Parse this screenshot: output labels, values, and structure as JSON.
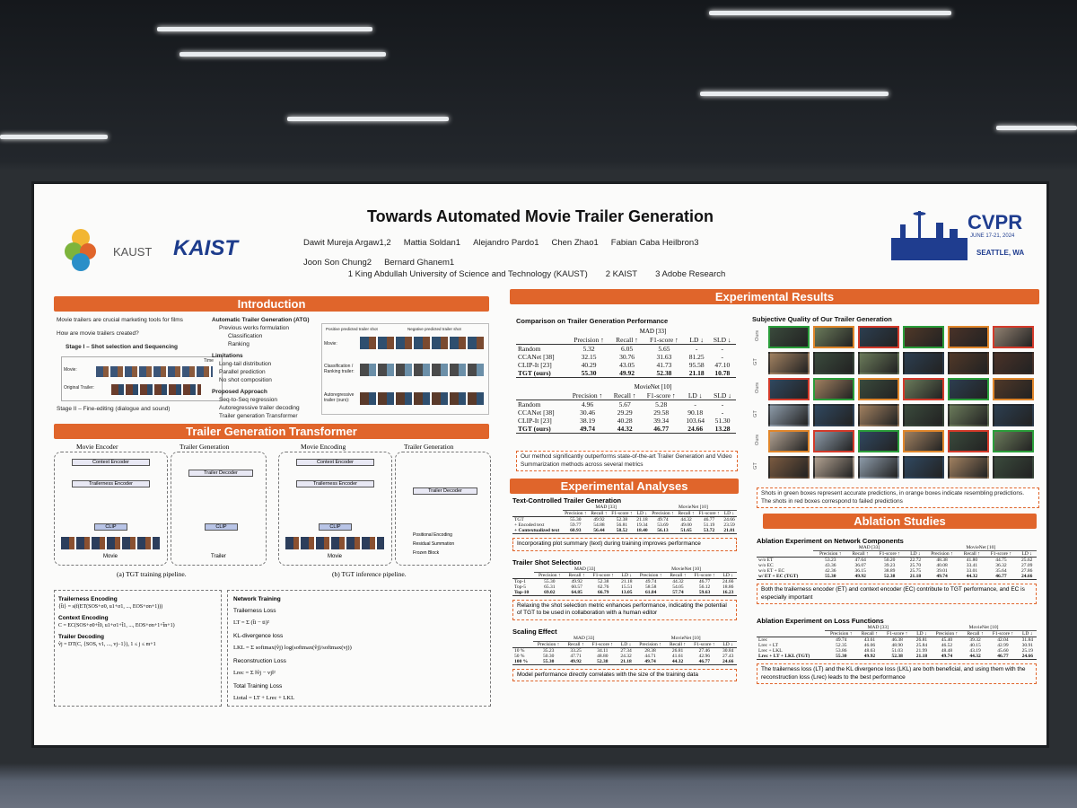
{
  "header": {
    "title": "Towards Automated Movie Trailer Generation",
    "authors": [
      "Dawit Mureja Argaw1,2",
      "Mattia Soldan1",
      "Alejandro Pardo1",
      "Chen Zhao1",
      "Fabian Caba Heilbron3",
      "Joon Son Chung2",
      "Bernard Ghanem1"
    ],
    "affiliations": [
      "1 King Abdullah University of Science and Technology (KAUST)",
      "2 KAIST",
      "3 Adobe Research"
    ],
    "logos": [
      "KAUST",
      "KAIST"
    ],
    "conference": {
      "name": "CVPR",
      "dates": "JUNE 17-21, 2024",
      "location": "SEATTLE, WA"
    }
  },
  "introduction": {
    "heading": "Introduction",
    "points": [
      "Movie trailers are crucial marketing tools for films",
      "How are movie trailers created?",
      "Stage I – Shot selection and Sequencing"
    ],
    "stage2": "Stage II – Fine-editing (dialogue and sound)",
    "figure_labels": [
      "Movie:",
      "Original Trailer:",
      "Time"
    ],
    "atg": [
      {
        "title": "Automatic Trailer Generation (ATG)",
        "items": [
          "Previous works formulation",
          "Classification",
          "Ranking"
        ]
      },
      {
        "title": "Limitations",
        "items": [
          "Long-tail distribution",
          "Parallel prediction",
          "No shot composition"
        ]
      },
      {
        "title": "Proposed Approach",
        "items": [
          "Seq-to-Seq regression",
          "Autoregressive trailer decoding",
          "Trailer generation Transformer"
        ]
      }
    ],
    "diagram_labels": [
      "Positive predicted trailer shot",
      "Negative predicted trailer shot",
      "Movie:",
      "Classification / Ranking trailer:",
      "Autoregressive trailer (ours):"
    ]
  },
  "transformer": {
    "heading": "Trailer Generation Transformer",
    "panels": [
      {
        "titles": [
          "Movie Encoder",
          "Trailer Generation"
        ],
        "caption": "(a) TGT training pipeline.",
        "inputs": [
          "Movie",
          "Trailer"
        ]
      },
      {
        "titles": [
          "Movie Encoding",
          "Trailer Generation"
        ],
        "caption": "(b) TGT inference pipeline.",
        "inputs": [
          "Movie"
        ]
      }
    ],
    "blocks": [
      "Context Encoder",
      "Trailerness Encoder",
      "Trailer Decoder",
      "CLIP"
    ],
    "legend": [
      "Positional Encoding",
      "Residual Summation",
      "Frozen Block"
    ],
    "equations": [
      {
        "title": "Trailerness Encoding",
        "formula": "{t̂i} = s(f(ET(SOS+σ0, u1+σ1, ..., EOS+σn+1)))"
      },
      {
        "title": "Context Encoding",
        "formula": "C = EC(SOS+σ0+t̂0, u1+σ1+t̂1, ..., EOS+σn+1+t̂n+1)"
      },
      {
        "title": "Trailer Decoding",
        "formula": "v̂j = DT(C, {SOS, v1, ..., vj−1}),  1 ≤ j ≤ m+1"
      }
    ],
    "training": {
      "title": "Network Training",
      "items": [
        {
          "title": "Trailerness Loss",
          "formula": "LT = Σ (t̂i − ti)²"
        },
        {
          "title": "KL-divergence loss",
          "formula": "LKL = Σ softmax(v̂j) log(softmax(v̂j)/softmax(vj))"
        },
        {
          "title": "Reconstruction Loss",
          "formula": "Lrec = Σ ‖v̂j − vj‖²"
        },
        {
          "title": "Total Training Loss",
          "formula": "Ltotal = LT + Lrec + LKL"
        }
      ]
    }
  },
  "results": {
    "heading": "Experimental Results",
    "comparison": {
      "title": "Comparison on Trailer Generation Performance",
      "blocks": [
        {
          "group": "MAD [33]",
          "headers": [
            "Precision ↑",
            "Recall ↑",
            "F1-score ↑",
            "LD ↓",
            "SLD ↓"
          ],
          "rows": [
            [
              "Random",
              "5.32",
              "6.05",
              "5.65",
              "-",
              "-"
            ],
            [
              "CCANet [38]",
              "32.15",
              "30.76",
              "31.63",
              "81.25",
              "-"
            ],
            [
              "CLIP-It [23]",
              "40.29",
              "43.05",
              "41.73",
              "95.58",
              "47.10"
            ],
            [
              "TGT (ours)",
              "55.30",
              "49.92",
              "52.38",
              "21.18",
              "10.78"
            ]
          ]
        },
        {
          "group": "MovieNet [10]",
          "headers": [
            "Precision ↑",
            "Recall ↑",
            "F1-score ↑",
            "LD ↓",
            "SLD ↓"
          ],
          "rows": [
            [
              "Random",
              "4.96",
              "5.67",
              "5.28",
              "-",
              "-"
            ],
            [
              "CCANet [38]",
              "30.46",
              "29.29",
              "29.58",
              "90.18",
              "-"
            ],
            [
              "CLIP-It [23]",
              "38.19",
              "40.28",
              "39.34",
              "103.64",
              "51.30"
            ],
            [
              "TGT (ours)",
              "49.74",
              "44.32",
              "46.77",
              "24.66",
              "13.28"
            ]
          ]
        }
      ],
      "note": "Our method significantly outperforms state-of-the-art Trailer Generation and Video Summarization methods across several metrics"
    },
    "subjective": {
      "title": "Subjective Quality of Our Trailer Generation",
      "rows": [
        "Ours",
        "GT",
        "Ours",
        "GT",
        "Ours",
        "GT"
      ],
      "note": "Shots in green boxes represent accurate predictions, in orange boxes indicate resembling predictions. The shots in red boxes correspond to failed predictions"
    }
  },
  "analyses": {
    "heading": "Experimental Analyses",
    "tables": [
      {
        "title": "Text-Controlled Trailer Generation",
        "groups": [
          "MAD [33]",
          "MovieNet [10]"
        ],
        "headers": [
          "Precision ↑",
          "Recall ↑",
          "F1-score ↑",
          "LD ↓",
          "Precision ↑",
          "Recall ↑",
          "F1-score ↑",
          "LD ↓"
        ],
        "rows": [
          [
            "TGT",
            "55.30",
            "49.92",
            "52.38",
            "21.18",
            "49.74",
            "44.32",
            "46.77",
            "24.66"
          ],
          [
            "+ Encoded text",
            "59.77",
            "54.88",
            "56.81",
            "19.34",
            "53.69",
            "49.00",
            "51.19",
            "23.59"
          ],
          [
            "+ Contextualized text",
            "60.93",
            "56.44",
            "58.52",
            "18.40",
            "56.13",
            "51.65",
            "53.72",
            "21.81"
          ]
        ],
        "note": "Incorporating plot summary (text) during training improves performance"
      },
      {
        "title": "Trailer Shot Selection",
        "groups": [
          "MAD [33]",
          "MovieNet [10]"
        ],
        "headers": [
          "Precision ↑",
          "Recall ↑",
          "F1-score ↑",
          "LD ↓",
          "Precision ↑",
          "Recall ↑",
          "F1-score ↑",
          "LD ↓"
        ],
        "rows": [
          [
            "Top-1",
            "55.30",
            "49.92",
            "52.38",
            "21.18",
            "49.74",
            "44.32",
            "46.77",
            "24.66"
          ],
          [
            "Top-5",
            "65.31",
            "60.57",
            "62.76",
            "15.51",
            "58.58",
            "54.05",
            "56.12",
            "18.86"
          ],
          [
            "Top-10",
            "69.02",
            "64.85",
            "66.79",
            "13.05",
            "61.84",
            "57.74",
            "59.63",
            "16.23"
          ]
        ],
        "note": "Relaxing the shot selection metric enhances performance, indicating the potential of TGT to be used in collaboration with a human editor"
      },
      {
        "title": "Scaling Effect",
        "groups": [
          "MAD [33]",
          "MovieNet [10]"
        ],
        "headers": [
          "Precision ↑",
          "Recall ↑",
          "F1-score ↑",
          "LD ↓",
          "Precision ↑",
          "Recall ↑",
          "F1-score ↑",
          "LD ↓"
        ],
        "rows": [
          [
            "10 %",
            "35.23",
            "33.25",
            "34.11",
            "27.34",
            "28.38",
            "26.81",
            "27.46",
            "30.84"
          ],
          [
            "50 %",
            "50.30",
            "47.71",
            "48.80",
            "24.32",
            "44.71",
            "41.61",
            "42.96",
            "27.43"
          ],
          [
            "100 %",
            "55.30",
            "49.92",
            "52.38",
            "21.18",
            "49.74",
            "44.32",
            "46.77",
            "24.66"
          ]
        ],
        "note": "Model performance directly correlates with the size of the training data"
      }
    ]
  },
  "ablation": {
    "heading": "Ablation Studies",
    "tables": [
      {
        "title": "Ablation Experiment on Network Components",
        "groups": [
          "MAD [33]",
          "MovieNet [10]"
        ],
        "headers": [
          "Precision ↑",
          "Recall ↑",
          "F1-score ↑",
          "LD ↓",
          "Precision ↑",
          "Recall ↑",
          "F1-score ↑",
          "LD ↓"
        ],
        "rows": [
          [
            "w/o ET",
            "53.23",
            "47.64",
            "50.20",
            "22.72",
            "48.38",
            "41.80",
            "44.75",
            "25.62"
          ],
          [
            "w/o EC",
            "43.36",
            "36.07",
            "39.23",
            "25.70",
            "40.08",
            "33.41",
            "36.32",
            "27.09"
          ],
          [
            "w/o ET + EC",
            "42.36",
            "36.15",
            "38.89",
            "25.75",
            "39.01",
            "33.01",
            "35.64",
            "27.86"
          ],
          [
            "w/ ET + EC (TGT)",
            "55.30",
            "49.92",
            "52.38",
            "21.18",
            "49.74",
            "44.32",
            "46.77",
            "24.66"
          ]
        ],
        "note": "Both the trailerness encoder (ET) and context encoder (EC) contribute to TGT performance, and EC is especially important"
      },
      {
        "title": "Ablation Experiment on Loss Functions",
        "groups": [
          "MAD [33]",
          "MovieNet [10]"
        ],
        "headers": [
          "Precision ↑",
          "Recall ↑",
          "F1-score ↑",
          "LD ↓",
          "Precision ↑",
          "Recall ↑",
          "F1-score ↑",
          "LD ↓"
        ],
        "rows": [
          [
            "Lrec",
            "49.74",
            "43.61",
            "46.38",
            "26.81",
            "45.40",
            "39.32",
            "42.04",
            "31.84"
          ],
          [
            "Lrec + LT",
            "52.35",
            "46.06",
            "48.90",
            "25.84",
            "46.52",
            "40.15",
            "42.99",
            "30.91"
          ],
          [
            "Lrec + LKL",
            "53.86",
            "48.63",
            "51.03",
            "21.99",
            "48.48",
            "43.19",
            "45.60",
            "25.19"
          ],
          [
            "Lrec + LT + LKL (TGT)",
            "55.30",
            "49.92",
            "52.38",
            "21.18",
            "49.74",
            "44.32",
            "46.77",
            "24.66"
          ]
        ],
        "note": "The trailerness loss (LT) and the KL divergence loss (LKL) are both beneficial, and using them with the reconstruction loss (Lrec) leads to the best performance"
      }
    ]
  }
}
